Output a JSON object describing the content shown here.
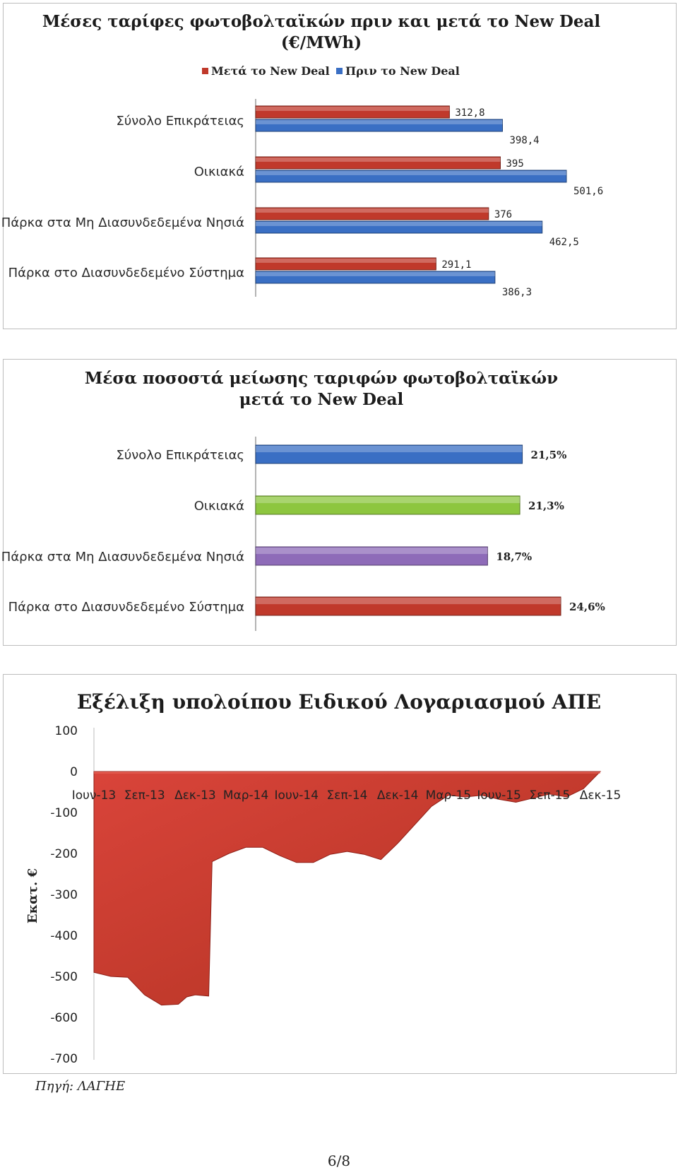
{
  "chart_data": [
    {
      "type": "bar",
      "orientation": "horizontal",
      "title_lines": [
        "Μέσες ταρίφες φωτοβολταϊκών πριν και μετά το New Deal",
        "(€/MWh)"
      ],
      "categories": [
        "Σύνολο Επικράτειας",
        "Οικιακά",
        "Πάρκα στα Μη Διασυνδεδεμένα Νησιά",
        "Πάρκα στο Διασυνδεδεμένο Σύστημα"
      ],
      "series": [
        {
          "name": "Μετά το New Deal",
          "color": "#c0392b",
          "values": [
            312.8,
            395,
            376,
            291.1
          ],
          "labels": [
            "312,8",
            "395",
            "376",
            "291,1"
          ]
        },
        {
          "name": "Πριν το New Deal",
          "color": "#3a6fc4",
          "values": [
            398.4,
            501.6,
            462.5,
            386.3
          ],
          "labels": [
            "398,4",
            "501,6",
            "462,5",
            "386,3"
          ]
        }
      ],
      "legend": "top",
      "xlim": [
        0,
        520
      ],
      "grid": false
    },
    {
      "type": "bar",
      "orientation": "horizontal",
      "title_lines": [
        "Μέσα ποσοστά μείωσης ταριφών φωτοβολταϊκών",
        "μετά το New Deal"
      ],
      "categories": [
        "Σύνολο Επικράτειας",
        "Οικιακά",
        "Πάρκα στα Μη Διασυνδεδεμένα Νησιά",
        "Πάρκα στο Διασυνδεδεμένο Σύστημα"
      ],
      "values": [
        21.5,
        21.3,
        18.7,
        24.6
      ],
      "labels": [
        "21,5%",
        "21,3%",
        "18,7%",
        "24,6%"
      ],
      "colors": [
        "#3a6fc4",
        "#8dc63f",
        "#8e6bb8",
        "#c0392b"
      ],
      "xlim": [
        0,
        26
      ],
      "grid": false
    },
    {
      "type": "area",
      "title": "Εξέλιξη υπολοίπου Ειδικού Λογαριασμού ΑΠΕ",
      "ylabel": "Εκατ. €",
      "ylim": [
        -700,
        100
      ],
      "yticks": [
        100,
        0,
        -100,
        -200,
        -300,
        -400,
        -500,
        -600,
        -700
      ],
      "xticks": [
        "Ιουν-13",
        "Σεπ-13",
        "Δεκ-13",
        "Μαρ-14",
        "Ιουν-14",
        "Σεπ-14",
        "Δεκ-14",
        "Μαρ-15",
        "Ιουν-15",
        "Σεπ-15",
        "Δεκ-15"
      ],
      "x_months": [
        0,
        1,
        2,
        3,
        4,
        5,
        5.5,
        6,
        6.8,
        7,
        8,
        9,
        10,
        11,
        12,
        13,
        14,
        15,
        16,
        17,
        18,
        19,
        20,
        21,
        22,
        23,
        24,
        25,
        26,
        27,
        28,
        29,
        30
      ],
      "values": [
        -490,
        -500,
        -502,
        -545,
        -570,
        -568,
        -550,
        -545,
        -548,
        -220,
        -200,
        -185,
        -185,
        -205,
        -222,
        -222,
        -202,
        -195,
        -202,
        -215,
        -175,
        -130,
        -85,
        -58,
        -62,
        -58,
        -68,
        -75,
        -65,
        -55,
        -62,
        -42,
        0
      ],
      "color": "#c0392b",
      "grid": false
    }
  ],
  "source": "Πηγή: ΛΑΓΗΕ",
  "page_number": "6/8"
}
